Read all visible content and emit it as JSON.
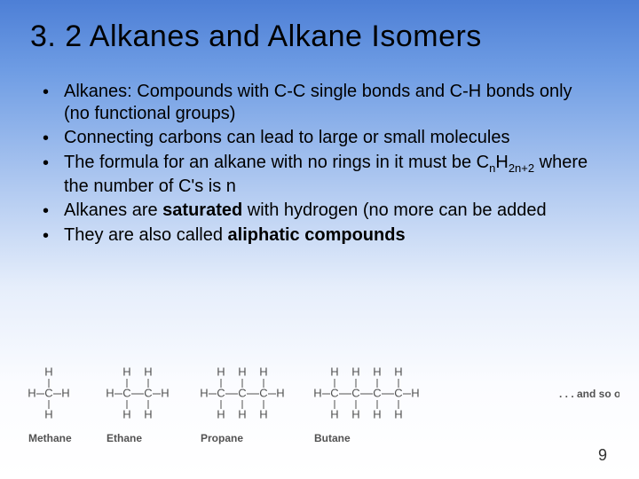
{
  "title": "3. 2 Alkanes and Alkane Isomers",
  "bullets": [
    {
      "html": "Alkanes: Compounds with C-C single bonds and C-H bonds only (no functional groups)"
    },
    {
      "html": "Connecting carbons can lead to large or small molecules"
    },
    {
      "html": "The formula for an alkane with no rings in it must be C<sub>n</sub>H<sub>2n+2</sub> where the number of C's is n"
    },
    {
      "html": "Alkanes are <b>saturated</b> with hydrogen (no more can be added"
    },
    {
      "html": "They are also called <b>aliphatic compounds</b>"
    }
  ],
  "molecules": [
    {
      "name": "Methane",
      "carbons": 1
    },
    {
      "name": "Ethane",
      "carbons": 2
    },
    {
      "name": "Propane",
      "carbons": 3
    },
    {
      "name": "Butane",
      "carbons": 4
    }
  ],
  "and_so_on": ". . . and so on",
  "page_number": "9",
  "colors": {
    "text": "#000000",
    "diagram": "#525252",
    "bg_top": "#4d7fd6",
    "bg_bot": "#ffffff"
  }
}
